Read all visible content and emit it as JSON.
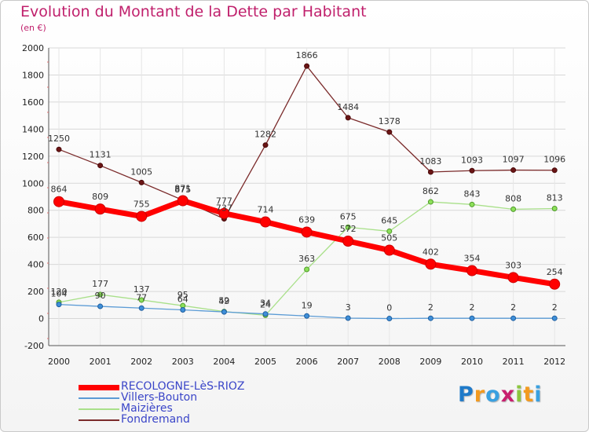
{
  "title": "Evolution du Montant de la Dette par Habitant",
  "subtitle": "(en €)",
  "logo": {
    "text": "Proxiti",
    "letter_colors": [
      "#1f7ac9",
      "#f39a1f",
      "#3aa0e0",
      "#c81f6e",
      "#8cc63f",
      "#f39a1f",
      "#3aa0e0"
    ]
  },
  "chart_data": {
    "type": "line",
    "title": "Evolution du Montant de la Dette par Habitant",
    "subtitle": "(en €)",
    "xlabel": "",
    "ylabel": "",
    "x": [
      "2000",
      "2001",
      "2002",
      "2003",
      "2004",
      "2005",
      "2006",
      "2007",
      "2008",
      "2009",
      "2010",
      "2011",
      "2012"
    ],
    "ylim": [
      -200,
      2000
    ],
    "yticks": [
      "-200",
      "0",
      "200",
      "400",
      "600",
      "800",
      "1000",
      "1200",
      "1400",
      "1600",
      "1800",
      "2000"
    ],
    "grid": "horizontal",
    "legend_position": "bottom-left",
    "series": [
      {
        "name": "RECOLOGNE-LèS-RIOZ",
        "color": "#ff0000",
        "values": [
          864,
          809,
          755,
          871,
          777,
          714,
          639,
          572,
          505,
          402,
          354,
          303,
          254
        ],
        "labels": [
          "864",
          "809",
          "755",
          "871",
          "777",
          "714",
          "639",
          "572",
          "505",
          "402",
          "354",
          "303",
          "254"
        ]
      },
      {
        "name": "Villers-Bouton",
        "color": "#5b9bd5",
        "values": [
          104,
          90,
          77,
          64,
          49,
          34,
          19,
          3,
          0,
          2,
          2,
          2,
          2
        ],
        "labels": [
          "104",
          "90",
          "77",
          "64",
          "49",
          "34",
          "19",
          "3",
          "0",
          "2",
          "2",
          "2",
          "2"
        ]
      },
      {
        "name": "Maizières",
        "color": "#a9e08a",
        "values": [
          120,
          177,
          137,
          95,
          52,
          24,
          363,
          675,
          645,
          862,
          843,
          808,
          813
        ],
        "labels": [
          "120",
          "177",
          "137",
          "95",
          "52",
          "24",
          "363",
          "675",
          "645",
          "862",
          "843",
          "808",
          "813"
        ]
      },
      {
        "name": "Fondremand",
        "color": "#7b2b2b",
        "values": [
          1250,
          1131,
          1005,
          875,
          737,
          1282,
          1866,
          1484,
          1378,
          1083,
          1093,
          1097,
          1096
        ],
        "labels": [
          "1250",
          "1131",
          "1005",
          "875",
          "737",
          "1282",
          "1866",
          "1484",
          "1378",
          "1083",
          "1093",
          "1097",
          "1096"
        ]
      }
    ]
  }
}
